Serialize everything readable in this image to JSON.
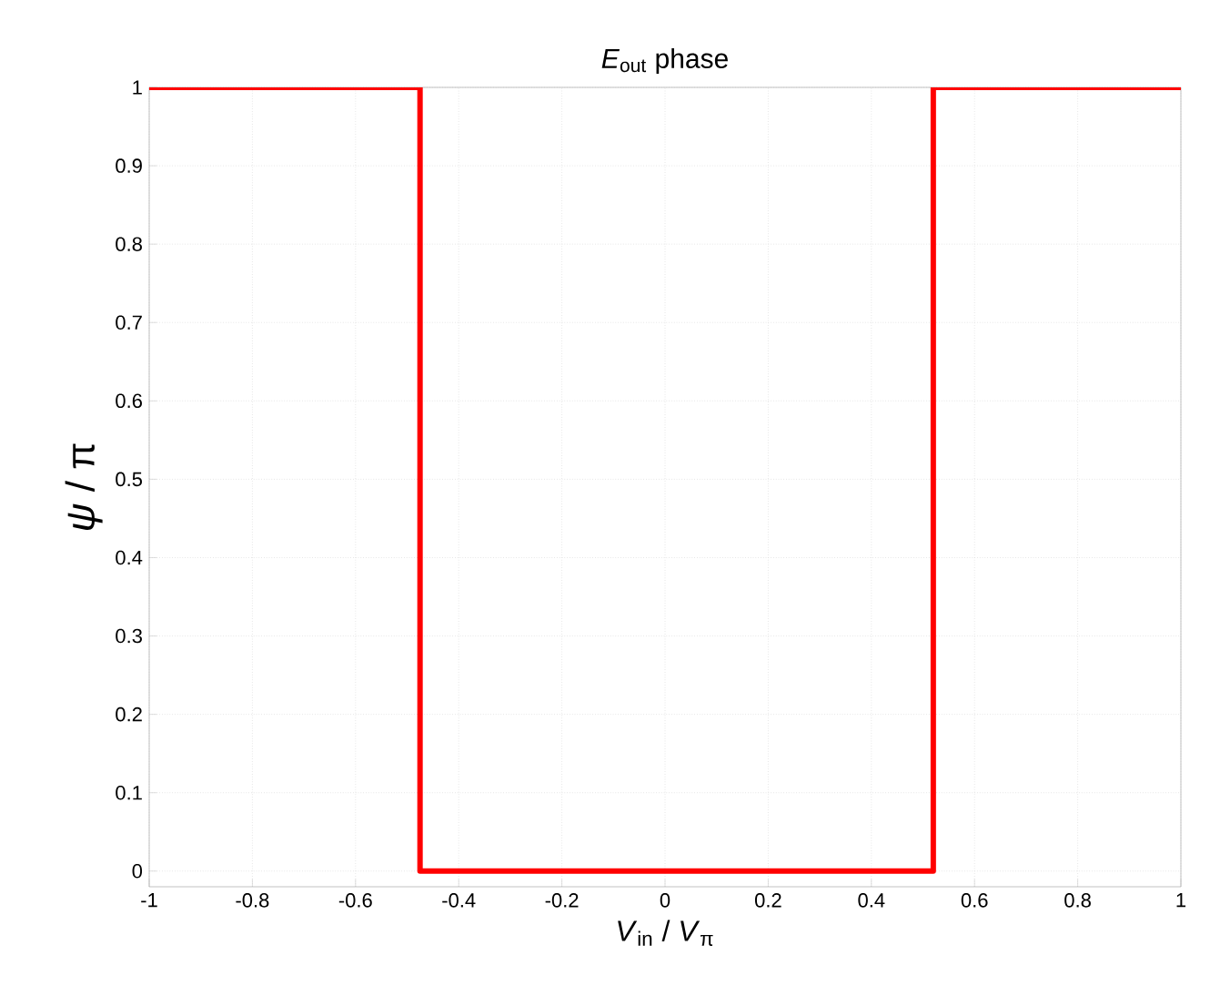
{
  "chart_data": {
    "type": "line",
    "title": "*E*$_{out}$ phase",
    "xlabel": "*V*$_{in}$ / *V*$_{π}$",
    "ylabel": "*ψ* / π",
    "series": [
      {
        "color": "#ff0000",
        "x": [
          -1,
          -0.475,
          -0.475,
          0.52,
          0.52,
          1
        ],
        "values": [
          1,
          1,
          0,
          0,
          1,
          1
        ]
      }
    ],
    "xlim": [
      -1,
      1
    ],
    "ylim": [
      -0.02,
      1
    ],
    "xticks": [
      -1,
      -0.8,
      -0.6,
      -0.4,
      -0.2,
      0,
      0.2,
      0.4,
      0.6,
      0.8,
      1
    ],
    "yticks": [
      0,
      0.1,
      0.2,
      0.3,
      0.4,
      0.5,
      0.6,
      0.7,
      0.8,
      0.9,
      1
    ],
    "grid": true,
    "marker": "none",
    "line_style": "solid"
  }
}
